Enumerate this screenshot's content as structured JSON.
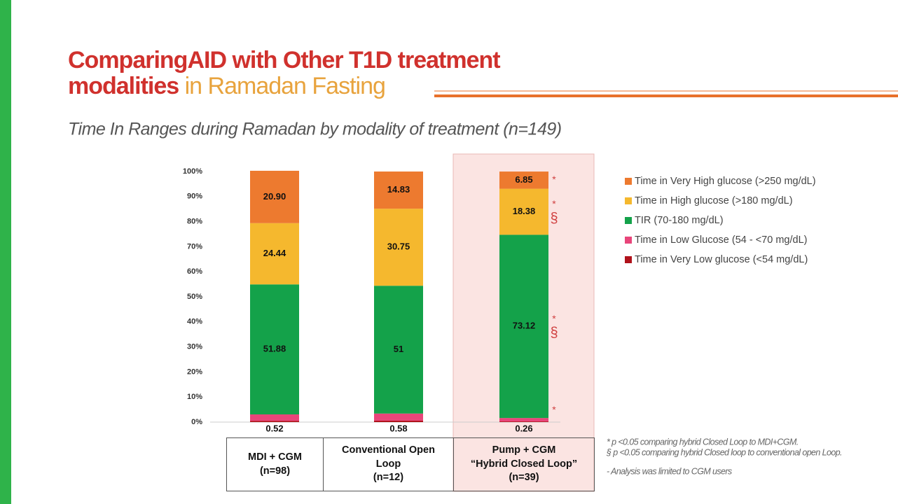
{
  "slide": {
    "title_line1": "ComparingAID with Other T1D treatment",
    "title_line2a": "modalities",
    "title_line2b": "in Ramadan Fasting",
    "footnotes": [
      "* p <0.05 comparing hybrid Closed Loop to MDI+CGM.",
      "§ p <0.05 comparing hybrid Closed loop to conventional open Loop.",
      "- Analysis was limited to CGM users"
    ]
  },
  "chart_data": {
    "type": "stacked_bar",
    "title": "Time In Ranges during Ramadan by modality of treatment (n=149)",
    "categories": [
      "MDI + CGM\n(n=98)",
      "Conventional Open\nLoop\n(n=12)",
      "Pump + CGM\n“Hybrid Closed Loop”\n(n=39)"
    ],
    "highlight": 2,
    "ylim": [
      0,
      100
    ],
    "yticks": [
      {
        "value": 0,
        "label": "0%"
      },
      {
        "value": 10,
        "label": "10%"
      },
      {
        "value": 20,
        "label": "20%"
      },
      {
        "value": 30,
        "label": "30%"
      },
      {
        "value": 40,
        "label": "40%"
      },
      {
        "value": 50,
        "label": "50%"
      },
      {
        "value": 60,
        "label": "60%"
      },
      {
        "value": 70,
        "label": "70%"
      },
      {
        "value": 80,
        "label": "80%"
      },
      {
        "value": 90,
        "label": "90%"
      },
      {
        "value": 100,
        "label": "100%"
      }
    ],
    "series": [
      {
        "name": "Time in Very Low glucose (<54 mg/dL)",
        "color": "#b0121b",
        "values": [
          0.52,
          0.58,
          0.26
        ],
        "markers": [
          null,
          null,
          null
        ]
      },
      {
        "name": "Time in Low Glucose (54 - <70 mg/dL)",
        "color": "#e8457a",
        "values": [
          2.55,
          2.83,
          1.37
        ],
        "markers": [
          null,
          null,
          [
            "*"
          ]
        ]
      },
      {
        "name": "TIR (70-180 mg/dL)",
        "color": "#14a24a",
        "values": [
          51.88,
          51,
          73.12
        ],
        "markers": [
          null,
          null,
          [
            "*",
            "§"
          ]
        ]
      },
      {
        "name": "Time in High glucose (>180 mg/dL)",
        "color": "#f5b82e",
        "values": [
          24.44,
          30.75,
          18.38
        ],
        "markers": [
          null,
          null,
          [
            "*",
            "§"
          ]
        ]
      },
      {
        "name": "Time in Very High glucose (>250 mg/dL)",
        "color": "#ed7a2f",
        "values": [
          20.9,
          14.83,
          6.85
        ],
        "value_labels": [
          "20.90",
          "14.83",
          "6.85"
        ],
        "markers": [
          null,
          null,
          [
            "*"
          ]
        ]
      }
    ]
  }
}
